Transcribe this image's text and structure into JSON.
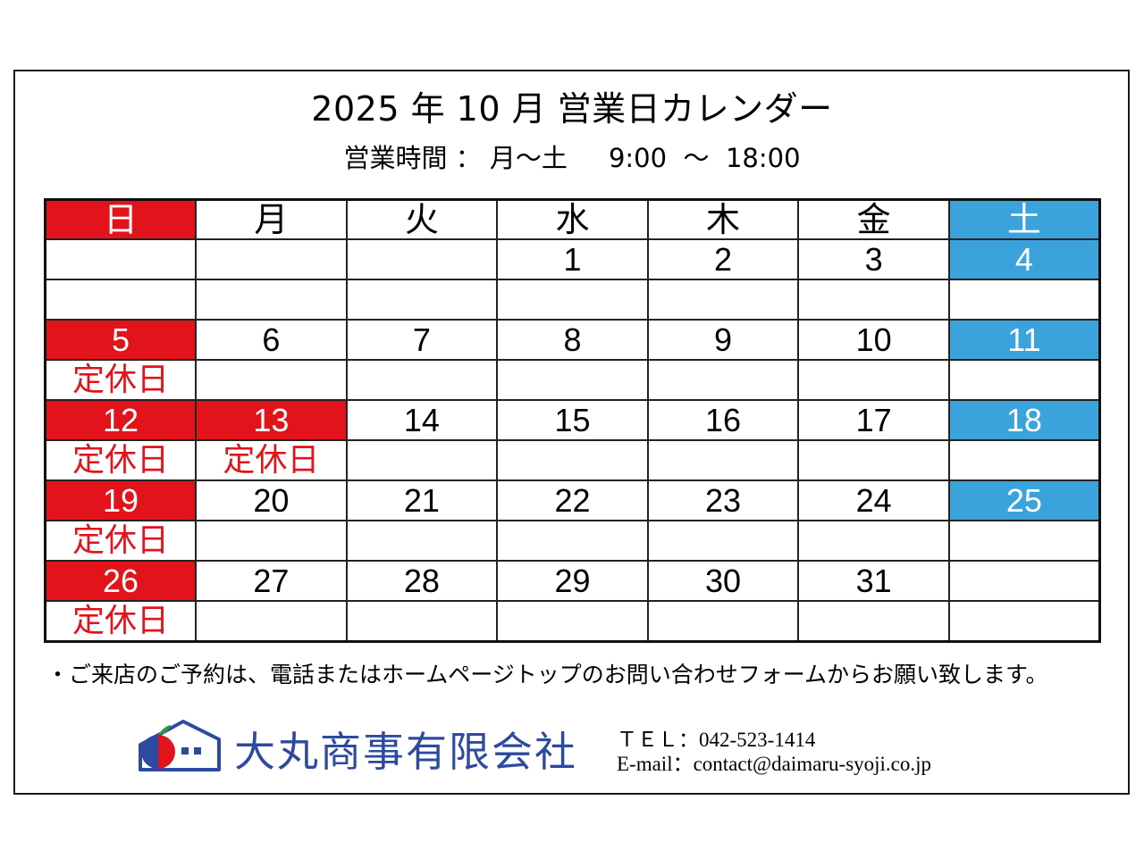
{
  "header": {
    "title": "2025 年 10 月  営業日カレンダー",
    "hours": "営業時間 ： 月～土     9:00  ～  18:00"
  },
  "colors": {
    "sunday": "#e2131a",
    "saturday": "#3aa3dc",
    "company": "#2b4aa0"
  },
  "calendar": {
    "weekdays": [
      "日",
      "月",
      "火",
      "水",
      "木",
      "金",
      "土"
    ],
    "weeks": [
      {
        "dates": [
          "",
          "",
          "",
          "1",
          "2",
          "3",
          "4"
        ],
        "notes": [
          "",
          "",
          "",
          "",
          "",
          "",
          ""
        ]
      },
      {
        "dates": [
          "5",
          "6",
          "7",
          "8",
          "9",
          "10",
          "11"
        ],
        "notes": [
          "定休日",
          "",
          "",
          "",
          "",
          "",
          ""
        ]
      },
      {
        "dates": [
          "12",
          "13",
          "14",
          "15",
          "16",
          "17",
          "18"
        ],
        "notes": [
          "定休日",
          "定休日",
          "",
          "",
          "",
          "",
          ""
        ]
      },
      {
        "dates": [
          "19",
          "20",
          "21",
          "22",
          "23",
          "24",
          "25"
        ],
        "notes": [
          "定休日",
          "",
          "",
          "",
          "",
          "",
          ""
        ]
      },
      {
        "dates": [
          "26",
          "27",
          "28",
          "29",
          "30",
          "31",
          ""
        ],
        "notes": [
          "定休日",
          "",
          "",
          "",
          "",
          "",
          ""
        ]
      }
    ]
  },
  "notice": "・ご来店のご予約は、電話またはホームページトップのお問い合わせフォームからお願い致します。",
  "footer": {
    "logo_icon": "house-apple-logo-icon",
    "company_name": "大丸商事有限会社",
    "tel": "ＴＥＬ：042-523-1414",
    "email": "E-mail：contact@daimaru-syoji.co.jp"
  }
}
